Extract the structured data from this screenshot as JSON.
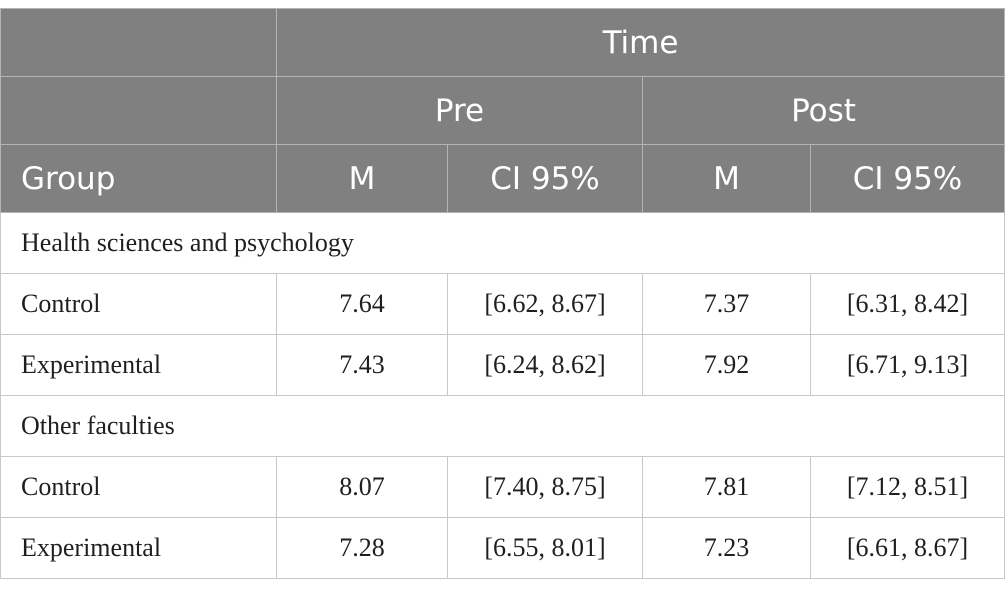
{
  "header": {
    "time_label": "Time",
    "pre_label": "Pre",
    "post_label": "Post",
    "group_label": "Group",
    "m_label": "M",
    "ci_label": "CI 95%"
  },
  "sections": [
    {
      "title": "Health sciences and psychology",
      "rows": [
        {
          "group": "Control",
          "pre_m": "7.64",
          "pre_ci": "[6.62, 8.67]",
          "post_m": "7.37",
          "post_ci": "[6.31, 8.42]"
        },
        {
          "group": "Experimental",
          "pre_m": "7.43",
          "pre_ci": "[6.24, 8.62]",
          "post_m": "7.92",
          "post_ci": "[6.71, 9.13]"
        }
      ]
    },
    {
      "title": "Other faculties",
      "rows": [
        {
          "group": "Control",
          "pre_m": "8.07",
          "pre_ci": "[7.40, 8.75]",
          "post_m": "7.81",
          "post_ci": "[7.12, 8.51]"
        },
        {
          "group": "Experimental",
          "pre_m": "7.28",
          "pre_ci": "[6.55, 8.01]",
          "post_m": "7.23",
          "post_ci": "[6.61, 8.67]"
        }
      ]
    }
  ],
  "colors": {
    "header_bg": "#808080",
    "header_text": "#ffffff",
    "border": "#c8c8c8"
  }
}
